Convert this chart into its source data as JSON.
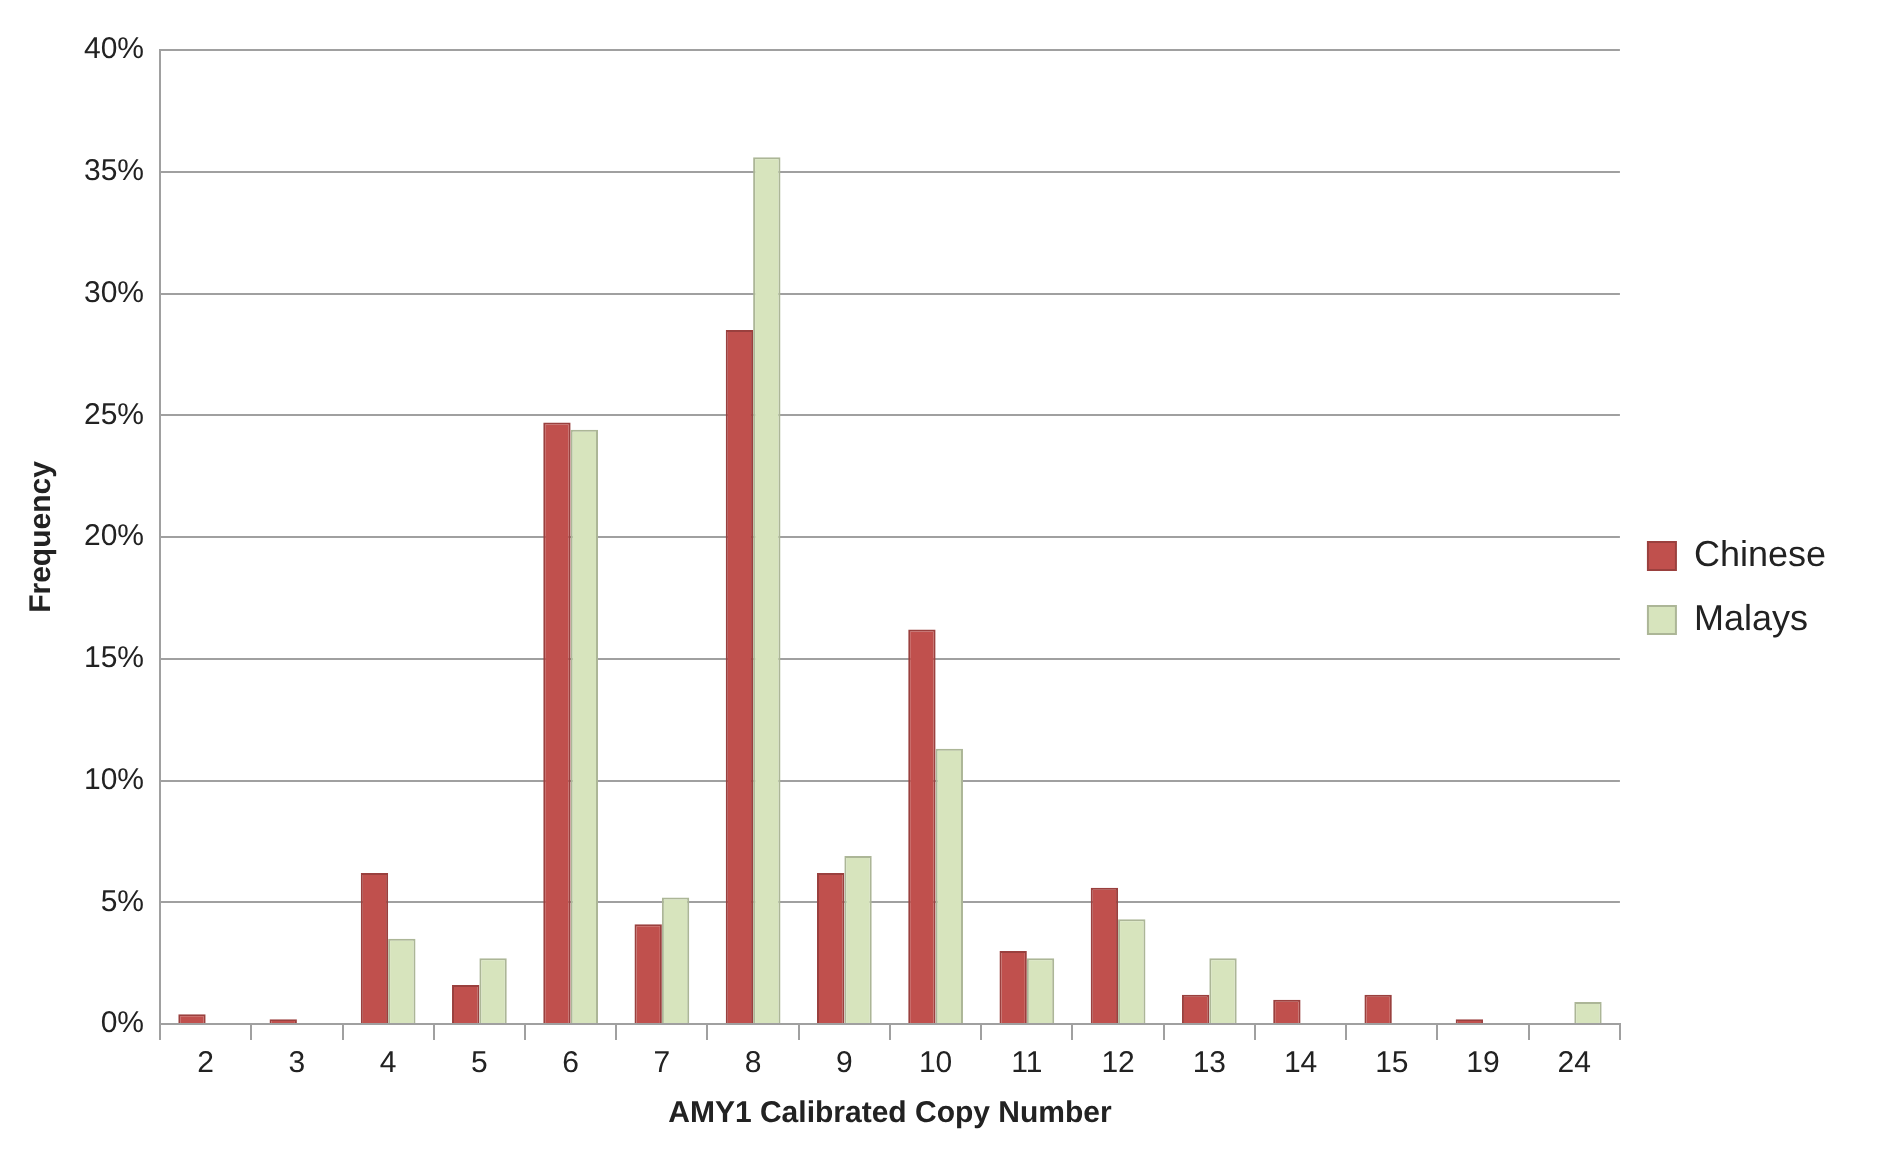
{
  "chart_data": {
    "type": "bar",
    "xlabel": "AMY1 Calibrated Copy Number",
    "ylabel": "Frequency",
    "categories": [
      "2",
      "3",
      "4",
      "5",
      "6",
      "7",
      "8",
      "9",
      "10",
      "11",
      "12",
      "13",
      "14",
      "15",
      "19",
      "24"
    ],
    "series": [
      {
        "name": "Chinese",
        "color": "#c0504d",
        "values": [
          0.4,
          0.2,
          6.2,
          1.6,
          24.7,
          4.1,
          28.5,
          6.2,
          16.2,
          3.0,
          5.6,
          1.2,
          1.0,
          1.2,
          0.2,
          0
        ]
      },
      {
        "name": "Malays",
        "color": "#d7e4bd",
        "values": [
          0,
          0,
          3.5,
          2.7,
          24.4,
          5.2,
          35.6,
          6.9,
          11.3,
          2.7,
          4.3,
          2.7,
          0,
          0,
          0,
          0.9
        ]
      }
    ],
    "ylim": [
      0,
      40
    ],
    "yticks": [
      {
        "value": 0,
        "label": "0%"
      },
      {
        "value": 5,
        "label": "5%"
      },
      {
        "value": 10,
        "label": "10%"
      },
      {
        "value": 15,
        "label": "15%"
      },
      {
        "value": 20,
        "label": "20%"
      },
      {
        "value": 25,
        "label": "25%"
      },
      {
        "value": 30,
        "label": "30%"
      },
      {
        "value": 35,
        "label": "35%"
      },
      {
        "value": 40,
        "label": "40%"
      }
    ],
    "grid": "y",
    "legend": "right"
  }
}
